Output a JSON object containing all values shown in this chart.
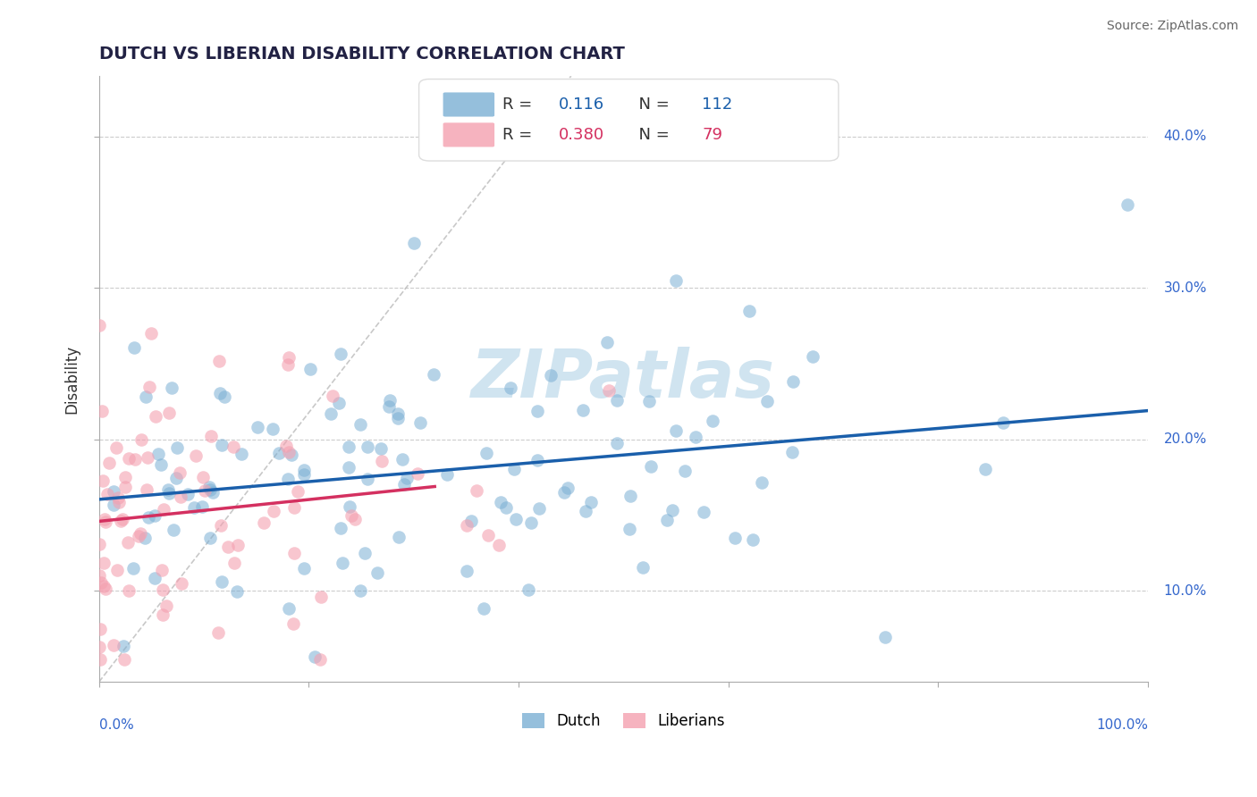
{
  "title": "DUTCH VS LIBERIAN DISABILITY CORRELATION CHART",
  "source": "Source: ZipAtlas.com",
  "ylabel": "Disability",
  "ytick_vals": [
    0.1,
    0.2,
    0.3,
    0.4
  ],
  "ytick_labels": [
    "10.0%",
    "20.0%",
    "30.0%",
    "40.0%"
  ],
  "xlim": [
    0.0,
    1.0
  ],
  "ylim": [
    0.04,
    0.44
  ],
  "blue_R": "0.116",
  "blue_N": "112",
  "pink_R": "0.380",
  "pink_N": "79",
  "blue_color": "#7BAFD4",
  "pink_color": "#F4A0B0",
  "blue_line_color": "#1A5FAB",
  "pink_line_color": "#D43060",
  "ref_line_color": "#BBBBBB",
  "watermark_color": "#D0E4F0",
  "background_color": "#FFFFFF",
  "grid_color": "#CCCCCC",
  "title_color": "#222244",
  "source_color": "#666666",
  "tick_label_color": "#3366CC"
}
